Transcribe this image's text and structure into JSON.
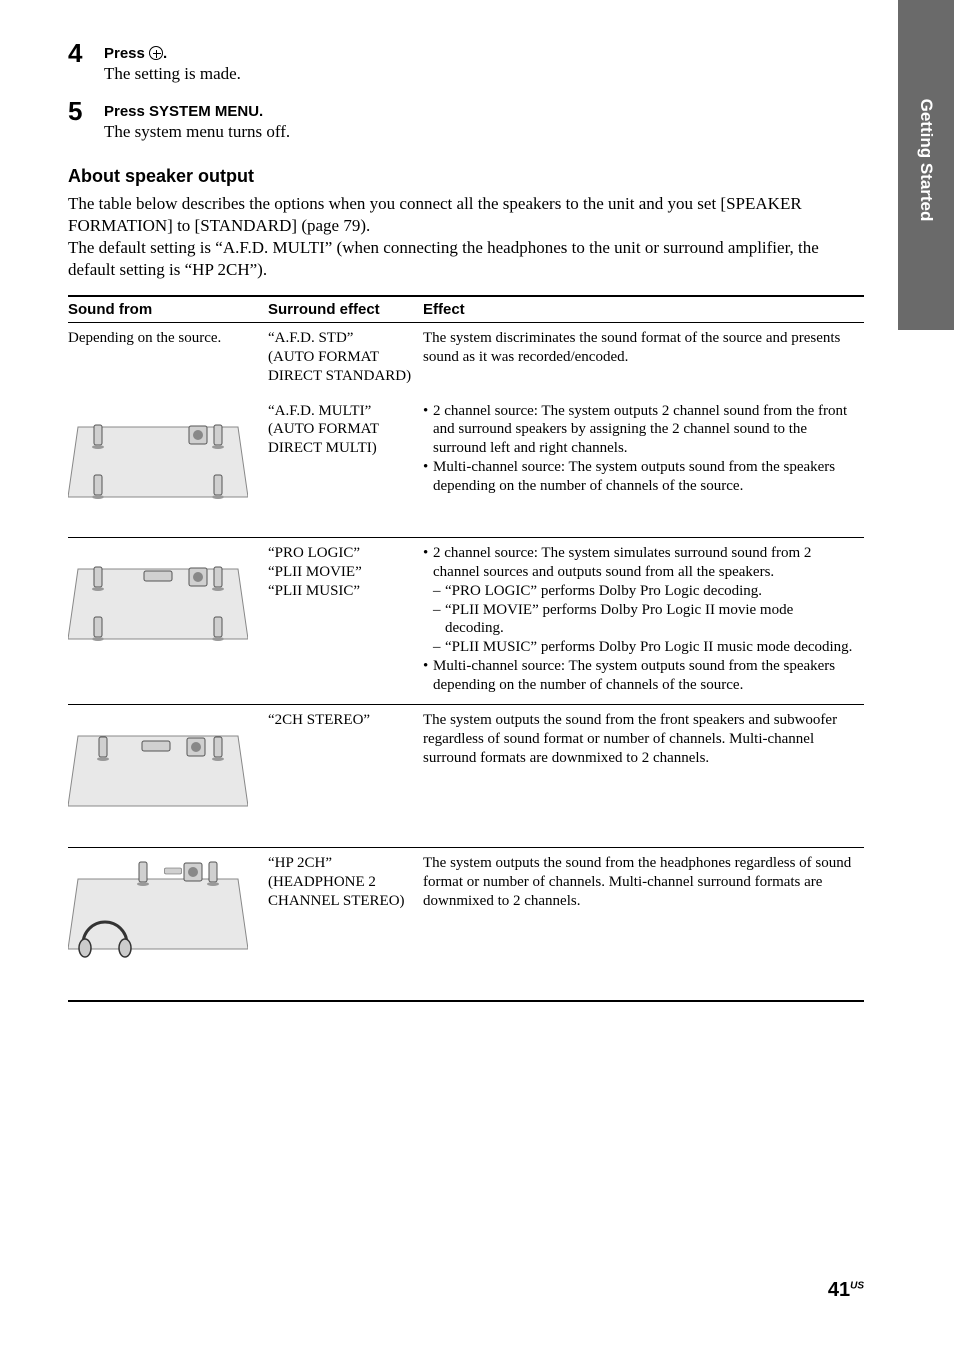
{
  "sideTab": "Getting Started",
  "steps": [
    {
      "num": "4",
      "title_pre": "Press ",
      "title_post": ".",
      "desc": "The setting is made."
    },
    {
      "num": "5",
      "title": "Press SYSTEM MENU.",
      "desc": "The system menu turns off."
    }
  ],
  "section_title": "About speaker output",
  "intro": [
    "The table below describes the options when you connect all the speakers to the unit and you set [SPEAKER FORMATION] to [STANDARD] (page 79).",
    "The default setting is “A.F.D. MULTI” (when connecting the headphones to the unit or surround amplifier, the default setting is “HP 2CH”)."
  ],
  "table": {
    "headers": [
      "Sound from",
      "Surround effect",
      "Effect"
    ],
    "rows": [
      {
        "sound": "Depending on the source.",
        "surround": [
          "“A.F.D. STD”",
          "(AUTO FORMAT DIRECT STANDARD)"
        ],
        "effect_plain": "The system discriminates the sound format of the source and presents sound as it was recorded/encoded.",
        "diagram": null,
        "sep": true
      },
      {
        "sound": "",
        "surround": [
          "“A.F.D. MULTI”",
          "(AUTO FORMAT DIRECT MULTI)"
        ],
        "effect_bullets": [
          "2 channel source: The system outputs 2 channel sound from the front and surround speakers by assigning the 2 channel sound to the surround left and right channels.",
          "Multi-channel source: The system outputs sound from the speakers depending on the number of channels of the source."
        ],
        "diagram": "5spk",
        "sep": false
      },
      {
        "sound": "",
        "surround": [
          "“PRO LOGIC”",
          "“PLII MOVIE”",
          "“PLII MUSIC”"
        ],
        "effect_bullets_dash": {
          "lead": "2 channel source: The system simulates surround sound from 2 channel sources and outputs sound from all the speakers.",
          "dashes": [
            "“PRO LOGIC” performs Dolby Pro Logic decoding.",
            "“PLII MOVIE” performs Dolby Pro Logic II movie mode decoding.",
            "“PLII MUSIC” performs Dolby Pro Logic II music mode decoding."
          ],
          "tail": "Multi-channel source: The system outputs sound from the speakers depending on the number of channels of the source."
        },
        "diagram": "5spk_center",
        "sep": true
      },
      {
        "sound": "",
        "surround": [
          "“2CH STEREO”"
        ],
        "effect_plain": "The system outputs the sound from the front speakers and subwoofer regardless of sound format or number of channels. Multi-channel surround formats are downmixed to 2 channels.",
        "diagram": "2ch",
        "sep": true
      },
      {
        "sound": "",
        "surround": [
          "“HP 2CH”",
          "(HEADPHONE 2 CHANNEL STEREO)"
        ],
        "effect_plain": "The system outputs the sound from the headphones regardless of sound format or number of channels. Multi-channel surround formats are downmixed to 2 channels.",
        "diagram": "hp",
        "sep": true,
        "last": true
      }
    ]
  },
  "page_number": "41",
  "page_region": "US"
}
